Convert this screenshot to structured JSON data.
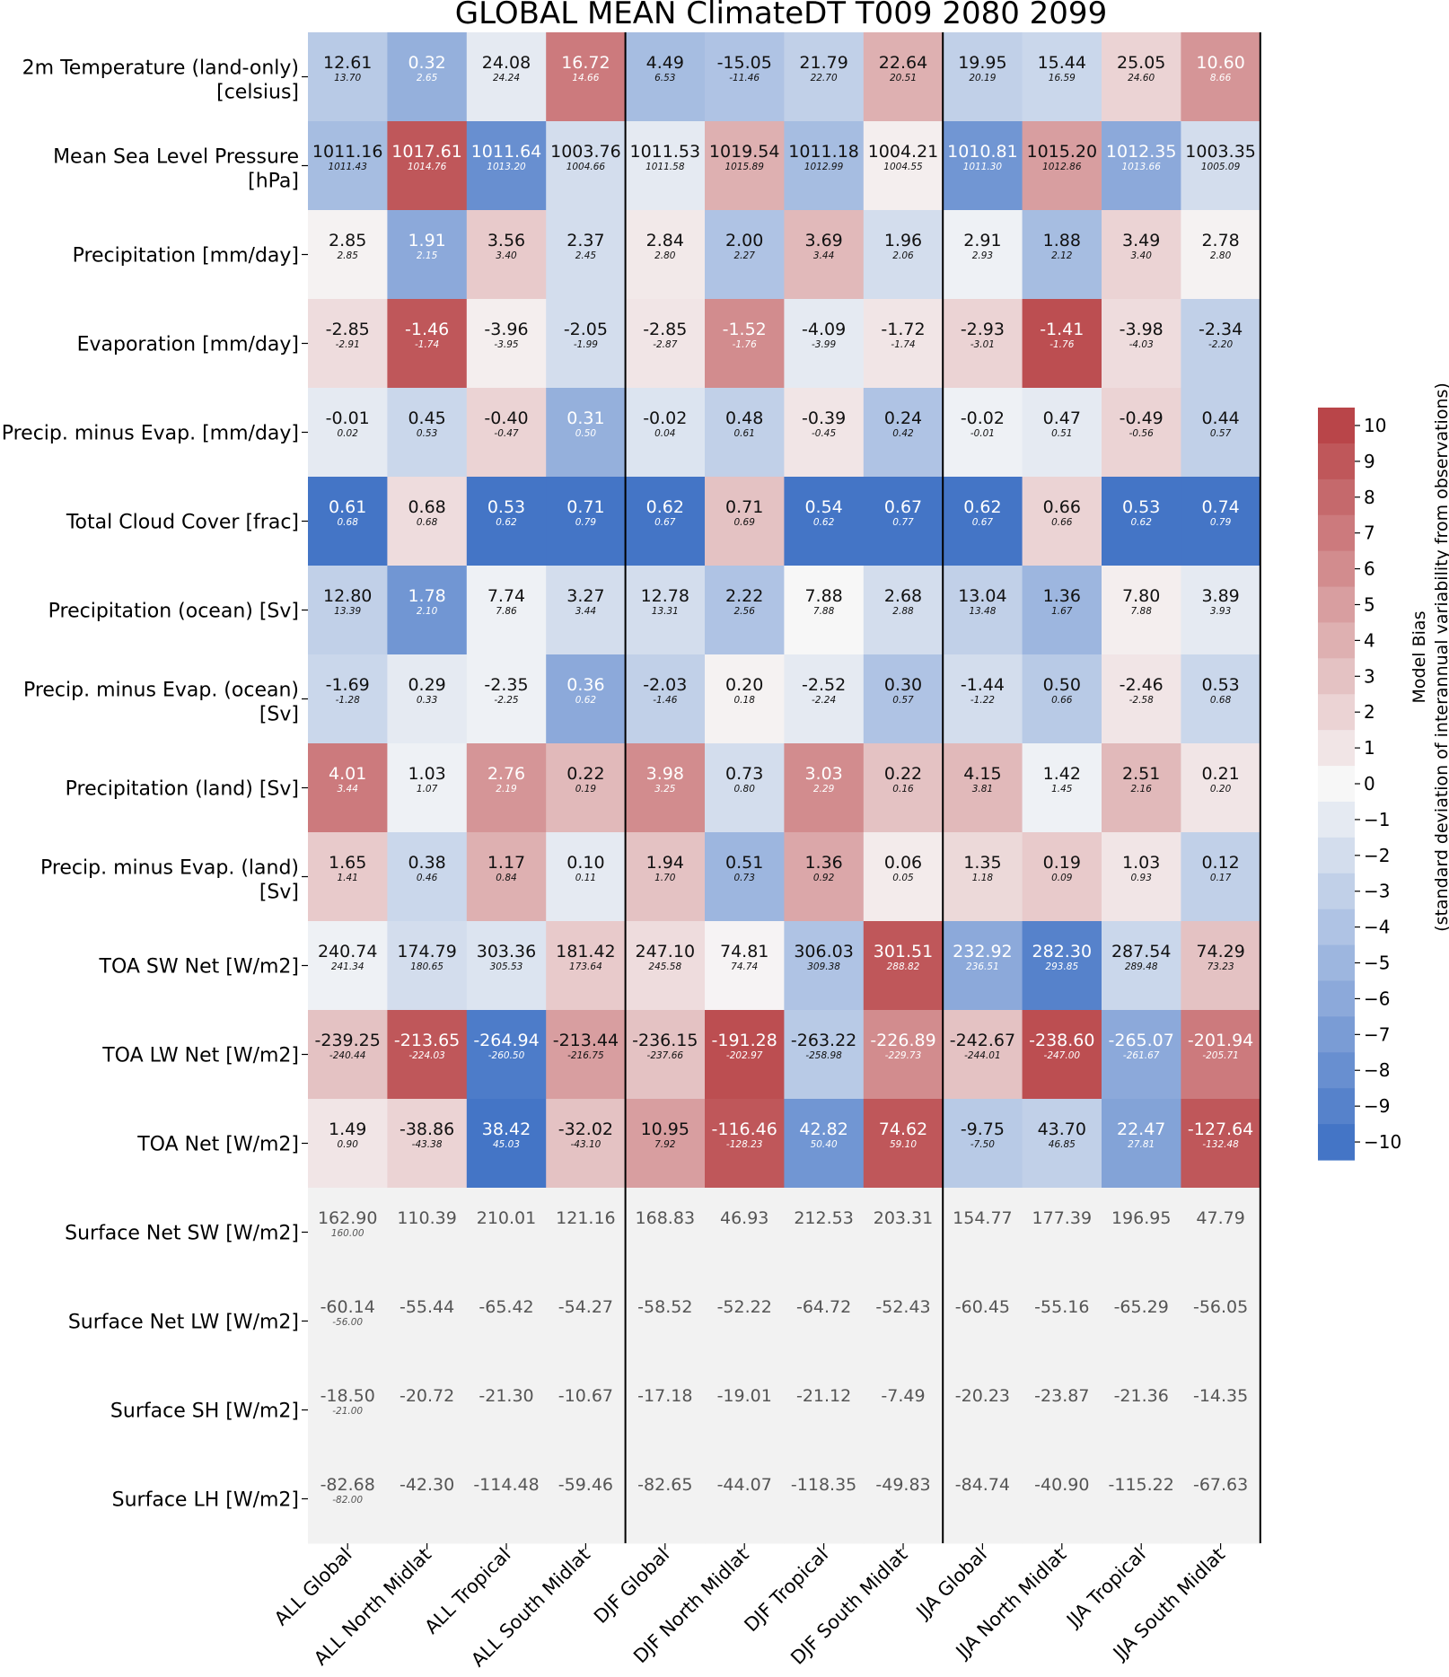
{
  "chart_data": {
    "type": "heatmap",
    "title": "GLOBAL MEAN ClimateDT T009 2080 2099",
    "colorbar": {
      "label_line1": "Model Bias",
      "label_line2": "(standard deviation of interannual variability from observations)",
      "range": [
        -10.5,
        10.5
      ],
      "ticks": [
        "10",
        "9",
        "8",
        "7",
        "6",
        "5",
        "4",
        "3",
        "2",
        "1",
        "0",
        "−1",
        "−2",
        "−3",
        "−4",
        "−5",
        "−6",
        "−7",
        "−8",
        "−9",
        "−10"
      ],
      "tick_values": [
        10,
        9,
        8,
        7,
        6,
        5,
        4,
        3,
        2,
        1,
        0,
        -1,
        -2,
        -3,
        -4,
        -5,
        -6,
        -7,
        -8,
        -9,
        -10
      ],
      "colors": {
        "low": "#3b6fc4",
        "mid": "#f7f7f7",
        "high": "#b63c40",
        "no_data": "#f2f2f2"
      }
    },
    "columns": [
      "ALL Global",
      "ALL North Midlat",
      "ALL Tropical",
      "ALL South Midlat",
      "DJF Global",
      "DJF North Midlat",
      "DJF Tropical",
      "DJF South Midlat",
      "JJA Global",
      "JJA North Midlat",
      "JJA Tropical",
      "JJA South Midlat"
    ],
    "rows": [
      {
        "label": [
          "2m Temperature (land-only)",
          "[celsius]"
        ],
        "values": [
          "12.61",
          "0.32",
          "24.08",
          "16.72",
          "4.49",
          "-15.05",
          "21.79",
          "22.64",
          "19.95",
          "15.44",
          "25.05",
          "10.60"
        ],
        "obs": [
          "13.70",
          "2.65",
          "24.24",
          "14.66",
          "6.53",
          "-11.46",
          "22.70",
          "20.51",
          "20.19",
          "16.59",
          "24.60",
          "8.66"
        ],
        "bias": [
          -3.5,
          -5.5,
          -1,
          7,
          -4.5,
          -4,
          -3,
          4,
          -3,
          -2.5,
          2,
          5.5
        ]
      },
      {
        "label": [
          "Mean Sea Level Pressure",
          "[hPa]"
        ],
        "values": [
          "1011.16",
          "1017.61",
          "1011.64",
          "1003.76",
          "1011.53",
          "1019.54",
          "1011.18",
          "1004.21",
          "1010.81",
          "1015.20",
          "1012.35",
          "1003.35"
        ],
        "obs": [
          "1011.43",
          "1014.76",
          "1013.20",
          "1004.66",
          "1011.58",
          "1015.89",
          "1012.99",
          "1004.55",
          "1011.30",
          "1012.86",
          "1013.66",
          "1005.09"
        ],
        "bias": [
          -4.5,
          9,
          -8,
          -2,
          -1,
          4,
          -4.5,
          0.5,
          -7.5,
          5,
          -6,
          -2
        ]
      },
      {
        "label": [
          "Precipitation [mm/day]"
        ],
        "values": [
          "2.85",
          "1.91",
          "3.56",
          "2.37",
          "2.84",
          "2.00",
          "3.69",
          "1.96",
          "2.91",
          "1.88",
          "3.49",
          "2.78"
        ],
        "obs": [
          "2.85",
          "2.15",
          "3.40",
          "2.45",
          "2.80",
          "2.27",
          "3.44",
          "2.06",
          "2.93",
          "2.12",
          "3.40",
          "2.80"
        ],
        "bias": [
          0.3,
          -6,
          2.5,
          -2,
          0.8,
          -4,
          3.5,
          -2,
          -0.5,
          -4.5,
          2,
          0.3
        ]
      },
      {
        "label": [
          "Evaporation [mm/day]"
        ],
        "values": [
          "-2.85",
          "-1.46",
          "-3.96",
          "-2.05",
          "-2.85",
          "-1.52",
          "-4.09",
          "-1.72",
          "-2.93",
          "-1.41",
          "-3.98",
          "-2.34"
        ],
        "obs": [
          "-2.91",
          "-1.74",
          "-3.95",
          "-1.99",
          "-2.87",
          "-1.76",
          "-3.99",
          "-1.74",
          "-3.01",
          "-1.76",
          "-4.03",
          "-2.20"
        ],
        "bias": [
          1.5,
          9,
          0.5,
          -2,
          1,
          6,
          -1,
          1,
          2,
          9.5,
          1.5,
          -3
        ]
      },
      {
        "label": [
          "Precip. minus Evap. [mm/day]"
        ],
        "values": [
          "-0.01",
          "0.45",
          "-0.40",
          "0.31",
          "-0.02",
          "0.48",
          "-0.39",
          "0.24",
          "-0.02",
          "0.47",
          "-0.49",
          "0.44"
        ],
        "obs": [
          "0.02",
          "0.53",
          "-0.47",
          "0.50",
          "0.04",
          "0.61",
          "-0.45",
          "0.42",
          "-0.01",
          "0.51",
          "-0.56",
          "0.57"
        ],
        "bias": [
          -1,
          -2.5,
          2,
          -5.5,
          -1.5,
          -3,
          1,
          -4,
          -0.5,
          -1,
          2,
          -3
        ]
      },
      {
        "label": [
          "Total Cloud Cover [frac]"
        ],
        "values": [
          "0.61",
          "0.68",
          "0.53",
          "0.71",
          "0.62",
          "0.71",
          "0.54",
          "0.67",
          "0.62",
          "0.66",
          "0.53",
          "0.74"
        ],
        "obs": [
          "0.68",
          "0.68",
          "0.62",
          "0.79",
          "0.67",
          "0.69",
          "0.62",
          "0.77",
          "0.67",
          "0.66",
          "0.62",
          "0.79"
        ],
        "bias": [
          -10,
          1.5,
          -10,
          -10,
          -10,
          3,
          -10,
          -10,
          -10,
          2,
          -10,
          -10
        ]
      },
      {
        "label": [
          "Precipitation (ocean) [Sv]"
        ],
        "values": [
          "12.80",
          "1.78",
          "7.74",
          "3.27",
          "12.78",
          "2.22",
          "7.88",
          "2.68",
          "13.04",
          "1.36",
          "7.80",
          "3.89"
        ],
        "obs": [
          "13.39",
          "2.10",
          "7.86",
          "3.44",
          "13.31",
          "2.56",
          "7.88",
          "2.88",
          "13.48",
          "1.67",
          "7.88",
          "3.93"
        ],
        "bias": [
          -3,
          -7.5,
          -0.5,
          -2,
          -2,
          -4,
          0,
          -2,
          -3,
          -5,
          0.5,
          -1
        ]
      },
      {
        "label": [
          "Precip. minus Evap. (ocean)",
          "[Sv]"
        ],
        "values": [
          "-1.69",
          "0.29",
          "-2.35",
          "0.36",
          "-2.03",
          "0.20",
          "-2.52",
          "0.30",
          "-1.44",
          "0.50",
          "-2.46",
          "0.53"
        ],
        "obs": [
          "-1.28",
          "0.33",
          "-2.25",
          "0.62",
          "-1.46",
          "0.18",
          "-2.24",
          "0.57",
          "-1.22",
          "0.66",
          "-2.58",
          "0.68"
        ],
        "bias": [
          -2.5,
          -1,
          -0.5,
          -6,
          -3,
          0.3,
          -1,
          -4,
          -2,
          -3.5,
          1,
          -2.5
        ]
      },
      {
        "label": [
          "Precipitation (land) [Sv]"
        ],
        "values": [
          "4.01",
          "1.03",
          "2.76",
          "0.22",
          "3.98",
          "0.73",
          "3.03",
          "0.22",
          "4.15",
          "1.42",
          "2.51",
          "0.21"
        ],
        "obs": [
          "3.44",
          "1.07",
          "2.19",
          "0.19",
          "3.25",
          "0.80",
          "2.29",
          "0.16",
          "3.81",
          "1.45",
          "2.16",
          "0.20"
        ],
        "bias": [
          7,
          -0.5,
          5.5,
          3.5,
          6,
          -2,
          6,
          3,
          3.5,
          -0.5,
          3.5,
          1
        ]
      },
      {
        "label": [
          "Precip. minus Evap. (land)",
          "[Sv]"
        ],
        "values": [
          "1.65",
          "0.38",
          "1.17",
          "0.10",
          "1.94",
          "0.51",
          "1.36",
          "0.06",
          "1.35",
          "0.19",
          "1.03",
          "0.12"
        ],
        "obs": [
          "1.41",
          "0.46",
          "0.84",
          "0.11",
          "1.70",
          "0.73",
          "0.92",
          "0.05",
          "1.18",
          "0.09",
          "0.93",
          "0.17"
        ],
        "bias": [
          2.5,
          -2.5,
          4,
          -1,
          3,
          -5,
          4.5,
          0.7,
          1.7,
          2.5,
          1,
          -3
        ]
      },
      {
        "label": [
          "TOA SW Net [W/m2]"
        ],
        "values": [
          "240.74",
          "174.79",
          "303.36",
          "181.42",
          "247.10",
          "74.81",
          "306.03",
          "301.51",
          "232.92",
          "282.30",
          "287.54",
          "74.29"
        ],
        "obs": [
          "241.34",
          "180.65",
          "305.53",
          "173.64",
          "245.58",
          "74.74",
          "309.38",
          "288.82",
          "236.51",
          "293.85",
          "289.48",
          "73.23"
        ],
        "bias": [
          -0.5,
          -2,
          -1.5,
          2.5,
          1.5,
          0.2,
          -4,
          9,
          -6,
          -9,
          -2.5,
          3
        ]
      },
      {
        "label": [
          "TOA LW Net [W/m2]"
        ],
        "values": [
          "-239.25",
          "-213.65",
          "-264.94",
          "-213.44",
          "-236.15",
          "-191.28",
          "-263.22",
          "-226.89",
          "-242.67",
          "-238.60",
          "-265.07",
          "-201.94"
        ],
        "obs": [
          "-240.44",
          "-224.03",
          "-260.50",
          "-216.75",
          "-237.66",
          "-202.97",
          "-258.98",
          "-229.73",
          "-244.01",
          "-247.00",
          "-261.67",
          "-205.71"
        ],
        "bias": [
          3,
          9,
          -9.5,
          5,
          3,
          9.5,
          -3.5,
          6,
          3,
          9.5,
          -6,
          7
        ]
      },
      {
        "label": [
          "TOA Net [W/m2]"
        ],
        "values": [
          "1.49",
          "-38.86",
          "38.42",
          "-32.02",
          "10.95",
          "-116.46",
          "42.82",
          "74.62",
          "-9.75",
          "43.70",
          "22.47",
          "-127.64"
        ],
        "obs": [
          "0.90",
          "-43.38",
          "45.03",
          "-43.10",
          "7.92",
          "-128.23",
          "50.40",
          "59.10",
          "-7.50",
          "46.85",
          "27.81",
          "-132.48"
        ],
        "bias": [
          1,
          2,
          -10,
          3,
          5,
          9,
          -7.5,
          9,
          -3.5,
          -3,
          -6.5,
          9
        ]
      },
      {
        "label": [
          "Surface Net SW [W/m2]"
        ],
        "values": [
          "162.90",
          "110.39",
          "210.01",
          "121.16",
          "168.83",
          "46.93",
          "212.53",
          "203.31",
          "154.77",
          "177.39",
          "196.95",
          "47.79"
        ],
        "obs": [
          "160.00",
          "",
          "",
          "",
          "",
          "",
          "",
          "",
          "",
          "",
          "",
          ""
        ],
        "bias": [
          null,
          null,
          null,
          null,
          null,
          null,
          null,
          null,
          null,
          null,
          null,
          null
        ]
      },
      {
        "label": [
          "Surface Net LW [W/m2]"
        ],
        "values": [
          "-60.14",
          "-55.44",
          "-65.42",
          "-54.27",
          "-58.52",
          "-52.22",
          "-64.72",
          "-52.43",
          "-60.45",
          "-55.16",
          "-65.29",
          "-56.05"
        ],
        "obs": [
          "-56.00",
          "",
          "",
          "",
          "",
          "",
          "",
          "",
          "",
          "",
          "",
          ""
        ],
        "bias": [
          null,
          null,
          null,
          null,
          null,
          null,
          null,
          null,
          null,
          null,
          null,
          null
        ]
      },
      {
        "label": [
          "Surface SH [W/m2]"
        ],
        "values": [
          "-18.50",
          "-20.72",
          "-21.30",
          "-10.67",
          "-17.18",
          "-19.01",
          "-21.12",
          "-7.49",
          "-20.23",
          "-23.87",
          "-21.36",
          "-14.35"
        ],
        "obs": [
          "-21.00",
          "",
          "",
          "",
          "",
          "",
          "",
          "",
          "",
          "",
          "",
          ""
        ],
        "bias": [
          null,
          null,
          null,
          null,
          null,
          null,
          null,
          null,
          null,
          null,
          null,
          null
        ]
      },
      {
        "label": [
          "Surface LH [W/m2]"
        ],
        "values": [
          "-82.68",
          "-42.30",
          "-114.48",
          "-59.46",
          "-82.65",
          "-44.07",
          "-118.35",
          "-49.83",
          "-84.74",
          "-40.90",
          "-115.22",
          "-67.63"
        ],
        "obs": [
          "-82.00",
          "",
          "",
          "",
          "",
          "",
          "",
          "",
          "",
          "",
          "",
          ""
        ],
        "bias": [
          null,
          null,
          null,
          null,
          null,
          null,
          null,
          null,
          null,
          null,
          null,
          null
        ]
      }
    ]
  }
}
